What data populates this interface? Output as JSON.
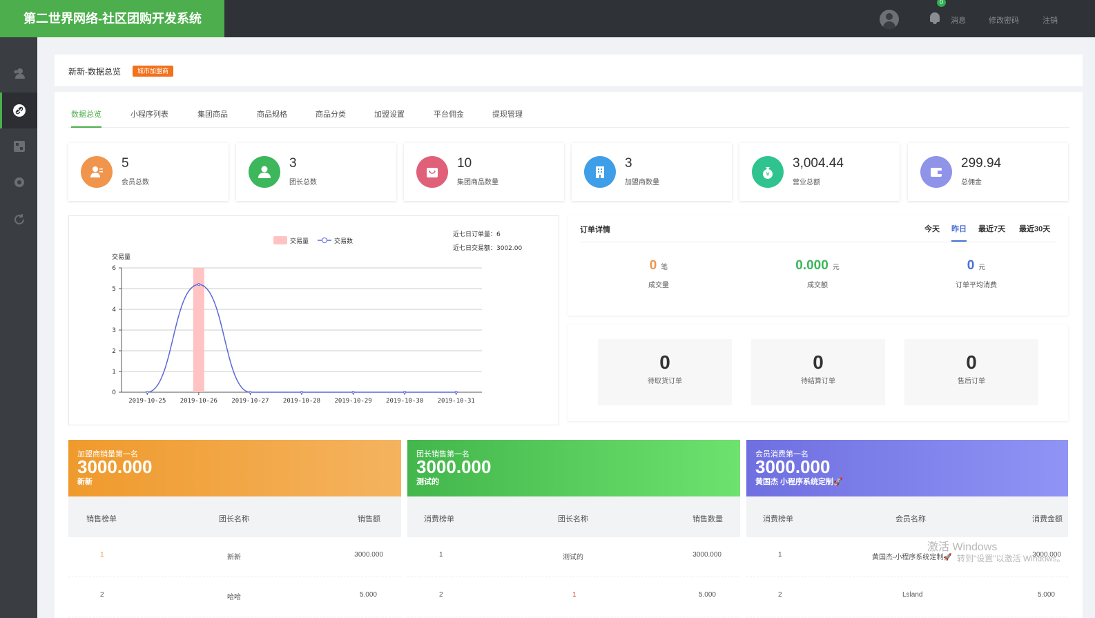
{
  "brand": "第二世界网络-社区团购开发系统",
  "topbar": {
    "badge_count": "0",
    "messages": "消息",
    "change_password": "修改密码",
    "logout": "注销"
  },
  "page": {
    "title": "新新-数据总览",
    "tag": "城市加盟商"
  },
  "tabs": [
    "数据总览",
    "小程序列表",
    "集团商品",
    "商品规格",
    "商品分类",
    "加盟设置",
    "平台佣金",
    "提现管理"
  ],
  "stats": [
    {
      "value": "5",
      "label": "会员总数",
      "color": "#f0954b"
    },
    {
      "value": "3",
      "label": "团长总数",
      "color": "#3db75c"
    },
    {
      "value": "10",
      "label": "集团商品数量",
      "color": "#e0607a"
    },
    {
      "value": "3",
      "label": "加盟商数量",
      "color": "#3f9ee8"
    },
    {
      "value": "3,004.44",
      "label": "营业总额",
      "color": "#2fc48f"
    },
    {
      "value": "299.94",
      "label": "总佣金",
      "color": "#8f94e8"
    }
  ],
  "chart_data": {
    "type": "bar+line",
    "categories": [
      "2019-10-25",
      "2019-10-26",
      "2019-10-27",
      "2019-10-28",
      "2019-10-29",
      "2019-10-30",
      "2019-10-31"
    ],
    "series": [
      {
        "name": "交易量",
        "type": "bar",
        "values": [
          0,
          6,
          0,
          0,
          0,
          0,
          0
        ],
        "color": "#ffc3c3"
      },
      {
        "name": "交易数",
        "type": "line",
        "values": [
          0,
          5.2,
          0,
          0,
          0,
          0,
          0
        ],
        "color": "#5b66d8"
      }
    ],
    "ylabel": "交易量",
    "ylim": [
      0,
      6
    ],
    "yticks": [
      0,
      1,
      2,
      3,
      4,
      5,
      6
    ],
    "notes": [
      "近七日订单量：6",
      "近七日交易额：3002.00"
    ]
  },
  "order_detail": {
    "title": "订单详情",
    "tabs": [
      "今天",
      "昨日",
      "最近7天",
      "最近30天"
    ],
    "active_tab": "昨日",
    "metrics": [
      {
        "value": "0",
        "unit": "笔",
        "label": "成交量",
        "color": "#f0954b"
      },
      {
        "value": "0.000",
        "unit": "元",
        "label": "成交额",
        "color": "#3db75c"
      },
      {
        "value": "0",
        "unit": "元",
        "label": "订单平均消费",
        "color": "#4a6fd6"
      }
    ]
  },
  "pending": [
    {
      "value": "0",
      "label": "待取货订单"
    },
    {
      "value": "0",
      "label": "待结算订单"
    },
    {
      "value": "0",
      "label": "售后订单"
    }
  ],
  "boards": [
    {
      "title": "加盟商销量第一名",
      "amount": "3000.000",
      "name": "新新",
      "grad": [
        "#ef9a2c",
        "#f5b35f"
      ],
      "headers": [
        "销售榜单",
        "团长名称",
        "销售额"
      ],
      "rows": [
        [
          "1",
          "新新",
          "3000.000"
        ],
        [
          "2",
          "哈哈",
          "5.000"
        ]
      ]
    },
    {
      "title": "团长销售第一名",
      "amount": "3000.000",
      "name": "测试的",
      "grad": [
        "#43b64c",
        "#6ee26e"
      ],
      "headers": [
        "消费榜单",
        "团长名称",
        "销售数量"
      ],
      "rows": [
        [
          "1",
          "测试的",
          "3000.000"
        ],
        [
          "2",
          "1",
          "5.000"
        ]
      ]
    },
    {
      "title": "会员消费第一名",
      "amount": "3000.000",
      "name": "黄国杰 小程序系统定制🚀",
      "grad": [
        "#6f6fe0",
        "#8f94f5"
      ],
      "headers": [
        "消费榜单",
        "会员名称",
        "消费金额"
      ],
      "rows": [
        [
          "1",
          "黄国杰-小程序系统定制🚀",
          "3000.000"
        ],
        [
          "2",
          "Lsland",
          "5.000"
        ]
      ]
    }
  ],
  "watermark": {
    "line1": "激活 Windows",
    "line2": "转到\"设置\"以激活 Windows。"
  }
}
